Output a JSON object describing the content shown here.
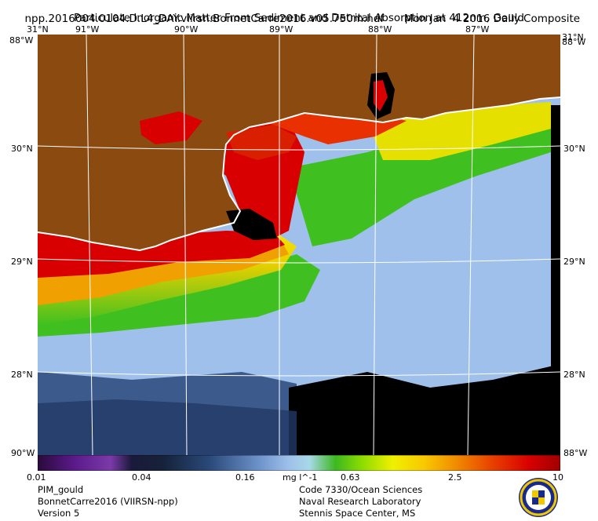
{
  "header": {
    "line1_left": "npp.2016004.0104.D.L4_DAY.viirsn.BonnetCarre2016.v05.750m.hdf",
    "line1_right": "Mon Jan  4 2016 Daily Composite",
    "line2": "Particulate Inorganic Matter From Sediment and Detrital Absorption at 412nm, Gould"
  },
  "map": {
    "lon_labels": [
      "91°W",
      "90°W",
      "89°W",
      "88°W",
      "87°W"
    ],
    "lat_labels": [
      "30°N",
      "29°N",
      "28°N"
    ],
    "corner_top_left": "31°N",
    "corner_top_right": "31°N",
    "corner_top_left_b": "88°W",
    "corner_top_right_b": "88°W",
    "corner_bottom_left": "90°W",
    "corner_bottom_right": "88°W",
    "colors": {
      "land": "#8b4a10",
      "no_data": "#000000",
      "coast": "#ffffff"
    }
  },
  "colorbar": {
    "ticks": [
      "0.01",
      "0.04",
      "0.16",
      "0.63",
      "2.5",
      "10"
    ],
    "unit": "mg l^-1",
    "colors": [
      "#2a0a3a",
      "#5a1a8a",
      "#7a3aa8",
      "#1a1a3a",
      "#15223a",
      "#2a4a7a",
      "#6a90c8",
      "#9ec0ea",
      "#a8d8e8",
      "#3cb820",
      "#8cdc00",
      "#f0f000",
      "#f8c800",
      "#f08c00",
      "#e84000",
      "#d80000",
      "#a00000"
    ]
  },
  "footer": {
    "left": [
      "PIM_gould",
      "BonnetCarre2016 (VIIRSN-npp)",
      "Version 5"
    ],
    "right": [
      "Code 7330/Ocean Sciences",
      "Naval Research Laboratory",
      "Stennis Space Center, MS"
    ]
  }
}
